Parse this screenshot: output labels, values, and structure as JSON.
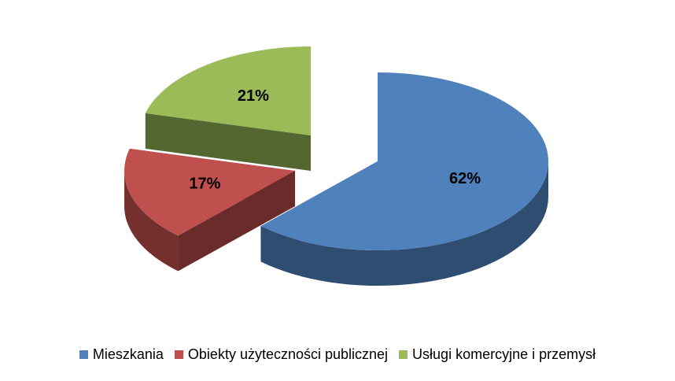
{
  "chart_data": {
    "type": "pie",
    "categories": [
      "Mieszkania",
      "Obiekty użyteczności publicznej",
      "Usługi komercyjne i przemysł"
    ],
    "values": [
      62,
      17,
      21
    ],
    "value_labels": [
      "62%",
      "17%",
      "21%"
    ],
    "colors": [
      "#4f81bd",
      "#c0504d",
      "#9bbb59"
    ],
    "legend": "bottom"
  }
}
